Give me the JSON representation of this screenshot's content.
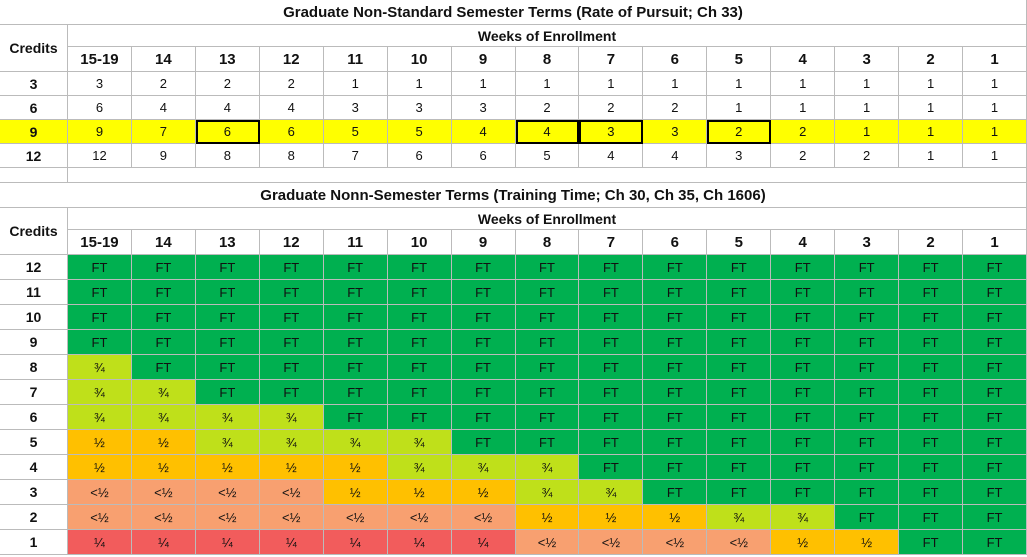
{
  "table1": {
    "title": "Graduate Non-Standard Semester Terms (Rate of Pursuit; Ch 33)",
    "row_header": "Credits",
    "column_group": "Weeks of Enrollment",
    "columns": [
      "15-19",
      "14",
      "13",
      "12",
      "11",
      "10",
      "9",
      "8",
      "7",
      "6",
      "5",
      "4",
      "3",
      "2",
      "1"
    ],
    "rows": [
      {
        "label": "3",
        "values": [
          3,
          2,
          2,
          2,
          1,
          1,
          1,
          1,
          1,
          1,
          1,
          1,
          1,
          1,
          1
        ]
      },
      {
        "label": "6",
        "values": [
          6,
          4,
          4,
          4,
          3,
          3,
          3,
          2,
          2,
          2,
          1,
          1,
          1,
          1,
          1
        ]
      },
      {
        "label": "9",
        "values": [
          9,
          7,
          6,
          6,
          5,
          5,
          4,
          4,
          3,
          3,
          2,
          2,
          1,
          1,
          1
        ],
        "fill": "#ffff00"
      },
      {
        "label": "12",
        "values": [
          12,
          9,
          8,
          8,
          7,
          6,
          6,
          5,
          4,
          4,
          3,
          2,
          2,
          1,
          1
        ]
      }
    ]
  },
  "table2": {
    "title": "Graduate Nonn-Semester Terms (Training Time; Ch 30, Ch 35, Ch 1606)",
    "row_header": "Credits",
    "column_group": "Weeks of Enrollment",
    "columns": [
      "15-19",
      "14",
      "13",
      "12",
      "11",
      "10",
      "9",
      "8",
      "7",
      "6",
      "5",
      "4",
      "3",
      "2",
      "1"
    ],
    "fill_by_value": {
      "FT": "#00b050",
      "¾": "#bfe01a",
      "½": "#ffc000",
      "<½": "#f8a070",
      "¼": "#f25c5c"
    },
    "rows": [
      {
        "label": "12",
        "values": [
          "FT",
          "FT",
          "FT",
          "FT",
          "FT",
          "FT",
          "FT",
          "FT",
          "FT",
          "FT",
          "FT",
          "FT",
          "FT",
          "FT",
          "FT"
        ]
      },
      {
        "label": "11",
        "values": [
          "FT",
          "FT",
          "FT",
          "FT",
          "FT",
          "FT",
          "FT",
          "FT",
          "FT",
          "FT",
          "FT",
          "FT",
          "FT",
          "FT",
          "FT"
        ]
      },
      {
        "label": "10",
        "values": [
          "FT",
          "FT",
          "FT",
          "FT",
          "FT",
          "FT",
          "FT",
          "FT",
          "FT",
          "FT",
          "FT",
          "FT",
          "FT",
          "FT",
          "FT"
        ]
      },
      {
        "label": "9",
        "values": [
          "FT",
          "FT",
          "FT",
          "FT",
          "FT",
          "FT",
          "FT",
          "FT",
          "FT",
          "FT",
          "FT",
          "FT",
          "FT",
          "FT",
          "FT"
        ]
      },
      {
        "label": "8",
        "values": [
          "¾",
          "FT",
          "FT",
          "FT",
          "FT",
          "FT",
          "FT",
          "FT",
          "FT",
          "FT",
          "FT",
          "FT",
          "FT",
          "FT",
          "FT"
        ]
      },
      {
        "label": "7",
        "values": [
          "¾",
          "¾",
          "FT",
          "FT",
          "FT",
          "FT",
          "FT",
          "FT",
          "FT",
          "FT",
          "FT",
          "FT",
          "FT",
          "FT",
          "FT"
        ]
      },
      {
        "label": "6",
        "values": [
          "¾",
          "¾",
          "¾",
          "¾",
          "FT",
          "FT",
          "FT",
          "FT",
          "FT",
          "FT",
          "FT",
          "FT",
          "FT",
          "FT",
          "FT"
        ]
      },
      {
        "label": "5",
        "values": [
          "½",
          "½",
          "¾",
          "¾",
          "¾",
          "¾",
          "FT",
          "FT",
          "FT",
          "FT",
          "FT",
          "FT",
          "FT",
          "FT",
          "FT"
        ]
      },
      {
        "label": "4",
        "values": [
          "½",
          "½",
          "½",
          "½",
          "½",
          "¾",
          "¾",
          "¾",
          "FT",
          "FT",
          "FT",
          "FT",
          "FT",
          "FT",
          "FT"
        ]
      },
      {
        "label": "3",
        "values": [
          "<½",
          "<½",
          "<½",
          "<½",
          "½",
          "½",
          "½",
          "¾",
          "¾",
          "FT",
          "FT",
          "FT",
          "FT",
          "FT",
          "FT"
        ]
      },
      {
        "label": "2",
        "values": [
          "<½",
          "<½",
          "<½",
          "<½",
          "<½",
          "<½",
          "<½",
          "½",
          "½",
          "½",
          "¾",
          "¾",
          "FT",
          "FT",
          "FT"
        ]
      },
      {
        "label": "1",
        "values": [
          "¼",
          "¼",
          "¼",
          "¼",
          "¼",
          "¼",
          "¼",
          "<½",
          "<½",
          "<½",
          "<½",
          "½",
          "½",
          "FT",
          "FT"
        ]
      }
    ]
  }
}
